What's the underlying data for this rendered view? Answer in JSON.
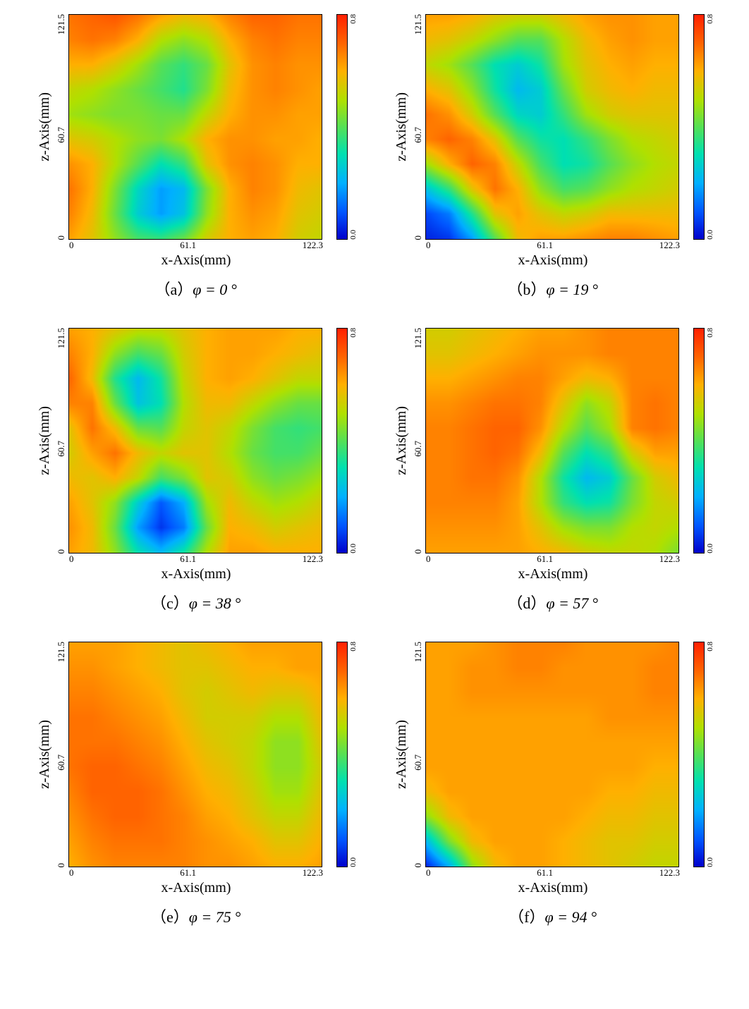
{
  "figure": {
    "grid_rows": 3,
    "grid_cols": 2,
    "background_color": "#ffffff",
    "axis_font_color": "#000000",
    "axis_border_color": "#000000",
    "axis_border_width_px": 1.5,
    "y_axis": {
      "label": "z-Axis(mm)",
      "ticks": [
        "121.5",
        "60.7",
        "0"
      ],
      "lim": [
        0,
        121.5
      ],
      "label_fontsize_pt": 15,
      "tick_fontsize_pt": 10
    },
    "x_axis": {
      "label": "x-Axis(mm)",
      "ticks": [
        "0",
        "61.1",
        "122.3"
      ],
      "lim": [
        0,
        122.3
      ],
      "label_fontsize_pt": 15,
      "tick_fontsize_pt": 10
    },
    "colorbar": {
      "vmin": 0.0,
      "vmax": 0.8,
      "ticks": [
        "0.8",
        "0.0"
      ],
      "tick_fontsize_pt": 8,
      "colormap_stops": [
        [
          0.0,
          "#0000cc"
        ],
        [
          0.12,
          "#0055ff"
        ],
        [
          0.25,
          "#00b0ff"
        ],
        [
          0.38,
          "#00e0b0"
        ],
        [
          0.5,
          "#55e055"
        ],
        [
          0.62,
          "#b0e000"
        ],
        [
          0.75,
          "#ffb000"
        ],
        [
          0.88,
          "#ff6000"
        ],
        [
          1.0,
          "#ff2000"
        ]
      ]
    },
    "caption_fontsize_pt": 16,
    "panels": [
      {
        "id": "a",
        "caption_prefix": "（a）",
        "caption_text": "φ = 0",
        "phi_deg": 0,
        "heatmap": {
          "type": "heatmap",
          "nx": 12,
          "ny": 10,
          "values": [
            [
              0.68,
              0.7,
              0.72,
              0.68,
              0.62,
              0.58,
              0.6,
              0.66,
              0.7,
              0.7,
              0.68,
              0.68
            ],
            [
              0.66,
              0.68,
              0.66,
              0.6,
              0.5,
              0.46,
              0.5,
              0.6,
              0.66,
              0.68,
              0.66,
              0.66
            ],
            [
              0.6,
              0.6,
              0.55,
              0.48,
              0.4,
              0.36,
              0.42,
              0.56,
              0.64,
              0.66,
              0.64,
              0.64
            ],
            [
              0.52,
              0.5,
              0.46,
              0.42,
              0.38,
              0.34,
              0.44,
              0.58,
              0.64,
              0.66,
              0.64,
              0.62
            ],
            [
              0.48,
              0.46,
              0.44,
              0.44,
              0.42,
              0.42,
              0.52,
              0.6,
              0.64,
              0.64,
              0.62,
              0.62
            ],
            [
              0.56,
              0.54,
              0.5,
              0.46,
              0.44,
              0.5,
              0.6,
              0.64,
              0.64,
              0.62,
              0.62,
              0.6
            ],
            [
              0.64,
              0.6,
              0.5,
              0.4,
              0.3,
              0.36,
              0.56,
              0.64,
              0.66,
              0.64,
              0.6,
              0.6
            ],
            [
              0.68,
              0.6,
              0.44,
              0.28,
              0.18,
              0.22,
              0.44,
              0.6,
              0.66,
              0.64,
              0.58,
              0.56
            ],
            [
              0.66,
              0.58,
              0.42,
              0.26,
              0.18,
              0.24,
              0.46,
              0.6,
              0.64,
              0.62,
              0.56,
              0.54
            ],
            [
              0.62,
              0.56,
              0.46,
              0.38,
              0.36,
              0.42,
              0.54,
              0.6,
              0.62,
              0.6,
              0.54,
              0.52
            ]
          ]
        }
      },
      {
        "id": "b",
        "caption_prefix": "（b）",
        "caption_text": "φ = 19",
        "phi_deg": 19,
        "heatmap": {
          "type": "heatmap",
          "nx": 12,
          "ny": 10,
          "values": [
            [
              0.62,
              0.62,
              0.6,
              0.56,
              0.54,
              0.54,
              0.58,
              0.62,
              0.64,
              0.64,
              0.62,
              0.62
            ],
            [
              0.58,
              0.56,
              0.52,
              0.46,
              0.4,
              0.4,
              0.5,
              0.58,
              0.62,
              0.64,
              0.62,
              0.62
            ],
            [
              0.52,
              0.48,
              0.4,
              0.3,
              0.26,
              0.32,
              0.48,
              0.56,
              0.6,
              0.62,
              0.6,
              0.6
            ],
            [
              0.6,
              0.56,
              0.46,
              0.32,
              0.22,
              0.26,
              0.42,
              0.54,
              0.58,
              0.6,
              0.58,
              0.58
            ],
            [
              0.68,
              0.64,
              0.54,
              0.4,
              0.28,
              0.26,
              0.36,
              0.48,
              0.54,
              0.56,
              0.56,
              0.56
            ],
            [
              0.66,
              0.7,
              0.66,
              0.56,
              0.4,
              0.32,
              0.3,
              0.36,
              0.44,
              0.5,
              0.52,
              0.54
            ],
            [
              0.48,
              0.6,
              0.7,
              0.66,
              0.52,
              0.38,
              0.3,
              0.32,
              0.4,
              0.46,
              0.5,
              0.52
            ],
            [
              0.24,
              0.36,
              0.56,
              0.68,
              0.6,
              0.46,
              0.38,
              0.4,
              0.46,
              0.5,
              0.52,
              0.54
            ],
            [
              0.08,
              0.14,
              0.34,
              0.56,
              0.62,
              0.56,
              0.52,
              0.54,
              0.58,
              0.58,
              0.58,
              0.58
            ],
            [
              0.04,
              0.06,
              0.18,
              0.4,
              0.58,
              0.62,
              0.62,
              0.64,
              0.66,
              0.66,
              0.64,
              0.62
            ]
          ]
        }
      },
      {
        "id": "c",
        "caption_prefix": "（c）",
        "caption_text": "φ = 38",
        "phi_deg": 38,
        "heatmap": {
          "type": "heatmap",
          "nx": 12,
          "ny": 10,
          "values": [
            [
              0.62,
              0.6,
              0.56,
              0.52,
              0.52,
              0.56,
              0.6,
              0.62,
              0.62,
              0.62,
              0.6,
              0.6
            ],
            [
              0.66,
              0.6,
              0.46,
              0.38,
              0.42,
              0.54,
              0.6,
              0.62,
              0.62,
              0.6,
              0.58,
              0.56
            ],
            [
              0.7,
              0.58,
              0.34,
              0.22,
              0.32,
              0.52,
              0.6,
              0.62,
              0.6,
              0.56,
              0.52,
              0.52
            ],
            [
              0.66,
              0.66,
              0.42,
              0.24,
              0.3,
              0.5,
              0.58,
              0.58,
              0.52,
              0.46,
              0.42,
              0.42
            ],
            [
              0.56,
              0.68,
              0.58,
              0.42,
              0.4,
              0.52,
              0.56,
              0.52,
              0.44,
              0.38,
              0.36,
              0.38
            ],
            [
              0.54,
              0.62,
              0.68,
              0.58,
              0.52,
              0.56,
              0.56,
              0.5,
              0.42,
              0.38,
              0.38,
              0.42
            ],
            [
              0.58,
              0.56,
              0.6,
              0.52,
              0.38,
              0.44,
              0.56,
              0.54,
              0.46,
              0.42,
              0.44,
              0.48
            ],
            [
              0.62,
              0.56,
              0.46,
              0.26,
              0.1,
              0.2,
              0.48,
              0.58,
              0.52,
              0.48,
              0.5,
              0.54
            ],
            [
              0.64,
              0.58,
              0.42,
              0.18,
              0.06,
              0.14,
              0.42,
              0.6,
              0.58,
              0.54,
              0.56,
              0.58
            ],
            [
              0.62,
              0.58,
              0.46,
              0.3,
              0.22,
              0.32,
              0.5,
              0.62,
              0.62,
              0.6,
              0.6,
              0.6
            ]
          ]
        }
      },
      {
        "id": "d",
        "caption_prefix": "（d）",
        "caption_text": "φ = 57",
        "phi_deg": 57,
        "heatmap": {
          "type": "heatmap",
          "nx": 12,
          "ny": 10,
          "values": [
            [
              0.54,
              0.54,
              0.56,
              0.58,
              0.6,
              0.62,
              0.62,
              0.64,
              0.66,
              0.66,
              0.66,
              0.66
            ],
            [
              0.56,
              0.56,
              0.58,
              0.6,
              0.62,
              0.64,
              0.64,
              0.64,
              0.66,
              0.66,
              0.66,
              0.66
            ],
            [
              0.6,
              0.6,
              0.62,
              0.64,
              0.66,
              0.66,
              0.62,
              0.58,
              0.6,
              0.66,
              0.66,
              0.66
            ],
            [
              0.64,
              0.64,
              0.66,
              0.68,
              0.68,
              0.66,
              0.56,
              0.46,
              0.52,
              0.66,
              0.68,
              0.66
            ],
            [
              0.66,
              0.66,
              0.68,
              0.7,
              0.7,
              0.64,
              0.5,
              0.4,
              0.48,
              0.66,
              0.68,
              0.66
            ],
            [
              0.66,
              0.66,
              0.68,
              0.7,
              0.68,
              0.58,
              0.4,
              0.3,
              0.36,
              0.54,
              0.62,
              0.62
            ],
            [
              0.66,
              0.66,
              0.68,
              0.68,
              0.64,
              0.5,
              0.32,
              0.22,
              0.26,
              0.42,
              0.54,
              0.58
            ],
            [
              0.66,
              0.66,
              0.66,
              0.66,
              0.62,
              0.5,
              0.36,
              0.3,
              0.32,
              0.44,
              0.52,
              0.54
            ],
            [
              0.64,
              0.64,
              0.64,
              0.64,
              0.62,
              0.56,
              0.48,
              0.44,
              0.44,
              0.5,
              0.52,
              0.5
            ],
            [
              0.62,
              0.62,
              0.62,
              0.62,
              0.62,
              0.6,
              0.58,
              0.54,
              0.52,
              0.52,
              0.5,
              0.44
            ]
          ]
        }
      },
      {
        "id": "e",
        "caption_prefix": "（e）",
        "caption_text": "φ = 75",
        "phi_deg": 75,
        "heatmap": {
          "type": "heatmap",
          "nx": 12,
          "ny": 10,
          "values": [
            [
              0.62,
              0.62,
              0.62,
              0.6,
              0.58,
              0.56,
              0.58,
              0.6,
              0.62,
              0.62,
              0.62,
              0.62
            ],
            [
              0.64,
              0.64,
              0.62,
              0.6,
              0.58,
              0.56,
              0.56,
              0.58,
              0.6,
              0.6,
              0.62,
              0.62
            ],
            [
              0.66,
              0.66,
              0.64,
              0.62,
              0.6,
              0.56,
              0.54,
              0.56,
              0.58,
              0.56,
              0.56,
              0.6
            ],
            [
              0.68,
              0.68,
              0.66,
              0.64,
              0.62,
              0.58,
              0.54,
              0.54,
              0.54,
              0.5,
              0.5,
              0.58
            ],
            [
              0.68,
              0.68,
              0.68,
              0.66,
              0.64,
              0.6,
              0.56,
              0.54,
              0.52,
              0.46,
              0.46,
              0.56
            ],
            [
              0.68,
              0.7,
              0.7,
              0.68,
              0.66,
              0.62,
              0.58,
              0.56,
              0.52,
              0.46,
              0.46,
              0.54
            ],
            [
              0.66,
              0.7,
              0.7,
              0.7,
              0.68,
              0.64,
              0.6,
              0.58,
              0.54,
              0.48,
              0.48,
              0.56
            ],
            [
              0.64,
              0.68,
              0.7,
              0.7,
              0.68,
              0.66,
              0.62,
              0.6,
              0.56,
              0.52,
              0.52,
              0.58
            ],
            [
              0.62,
              0.66,
              0.68,
              0.68,
              0.68,
              0.66,
              0.64,
              0.62,
              0.6,
              0.56,
              0.56,
              0.6
            ],
            [
              0.6,
              0.64,
              0.66,
              0.66,
              0.66,
              0.66,
              0.64,
              0.64,
              0.62,
              0.6,
              0.6,
              0.62
            ]
          ]
        }
      },
      {
        "id": "f",
        "caption_prefix": "（f）",
        "caption_text": "φ = 94",
        "phi_deg": 94,
        "heatmap": {
          "type": "heatmap",
          "nx": 12,
          "ny": 10,
          "values": [
            [
              0.62,
              0.62,
              0.62,
              0.64,
              0.66,
              0.66,
              0.66,
              0.64,
              0.64,
              0.64,
              0.64,
              0.66
            ],
            [
              0.62,
              0.62,
              0.64,
              0.64,
              0.66,
              0.66,
              0.64,
              0.64,
              0.64,
              0.64,
              0.66,
              0.66
            ],
            [
              0.62,
              0.62,
              0.64,
              0.64,
              0.64,
              0.64,
              0.64,
              0.64,
              0.64,
              0.64,
              0.66,
              0.66
            ],
            [
              0.62,
              0.62,
              0.62,
              0.62,
              0.62,
              0.62,
              0.62,
              0.62,
              0.64,
              0.64,
              0.64,
              0.64
            ],
            [
              0.62,
              0.62,
              0.62,
              0.62,
              0.62,
              0.62,
              0.62,
              0.62,
              0.62,
              0.62,
              0.62,
              0.62
            ],
            [
              0.62,
              0.62,
              0.62,
              0.62,
              0.62,
              0.62,
              0.62,
              0.62,
              0.62,
              0.62,
              0.6,
              0.6
            ],
            [
              0.58,
              0.62,
              0.62,
              0.62,
              0.62,
              0.62,
              0.62,
              0.62,
              0.6,
              0.6,
              0.58,
              0.58
            ],
            [
              0.46,
              0.58,
              0.62,
              0.62,
              0.62,
              0.62,
              0.62,
              0.6,
              0.58,
              0.58,
              0.56,
              0.56
            ],
            [
              0.22,
              0.44,
              0.58,
              0.62,
              0.62,
              0.62,
              0.6,
              0.58,
              0.56,
              0.56,
              0.54,
              0.54
            ],
            [
              0.04,
              0.2,
              0.46,
              0.58,
              0.62,
              0.62,
              0.6,
              0.58,
              0.56,
              0.54,
              0.52,
              0.52
            ]
          ]
        }
      }
    ]
  }
}
